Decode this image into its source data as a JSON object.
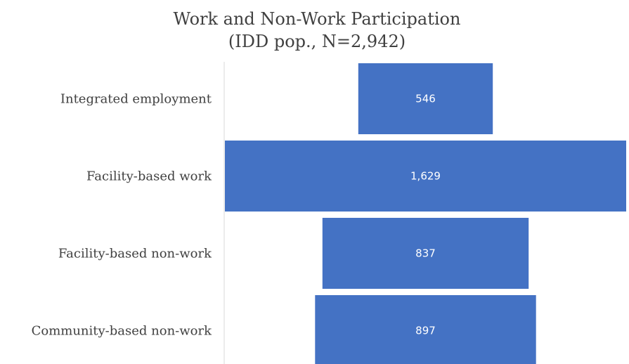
{
  "chart_data": {
    "type": "bar",
    "orientation": "horizontal",
    "style": "funnel",
    "title": [
      "Work and Non-Work Participation",
      "(IDD pop., N=2,942)"
    ],
    "categories": [
      "Integrated employment",
      "Facility-based work",
      "Facility-based non-work",
      "Community-based non-work"
    ],
    "values": [
      546,
      1629,
      837,
      897
    ],
    "value_labels": [
      "546",
      "1,629",
      "837",
      "897"
    ],
    "bar_color": "#4472c4",
    "label_color": "#ffffff",
    "text_color": "#404040",
    "grid": false,
    "legend": "none"
  }
}
